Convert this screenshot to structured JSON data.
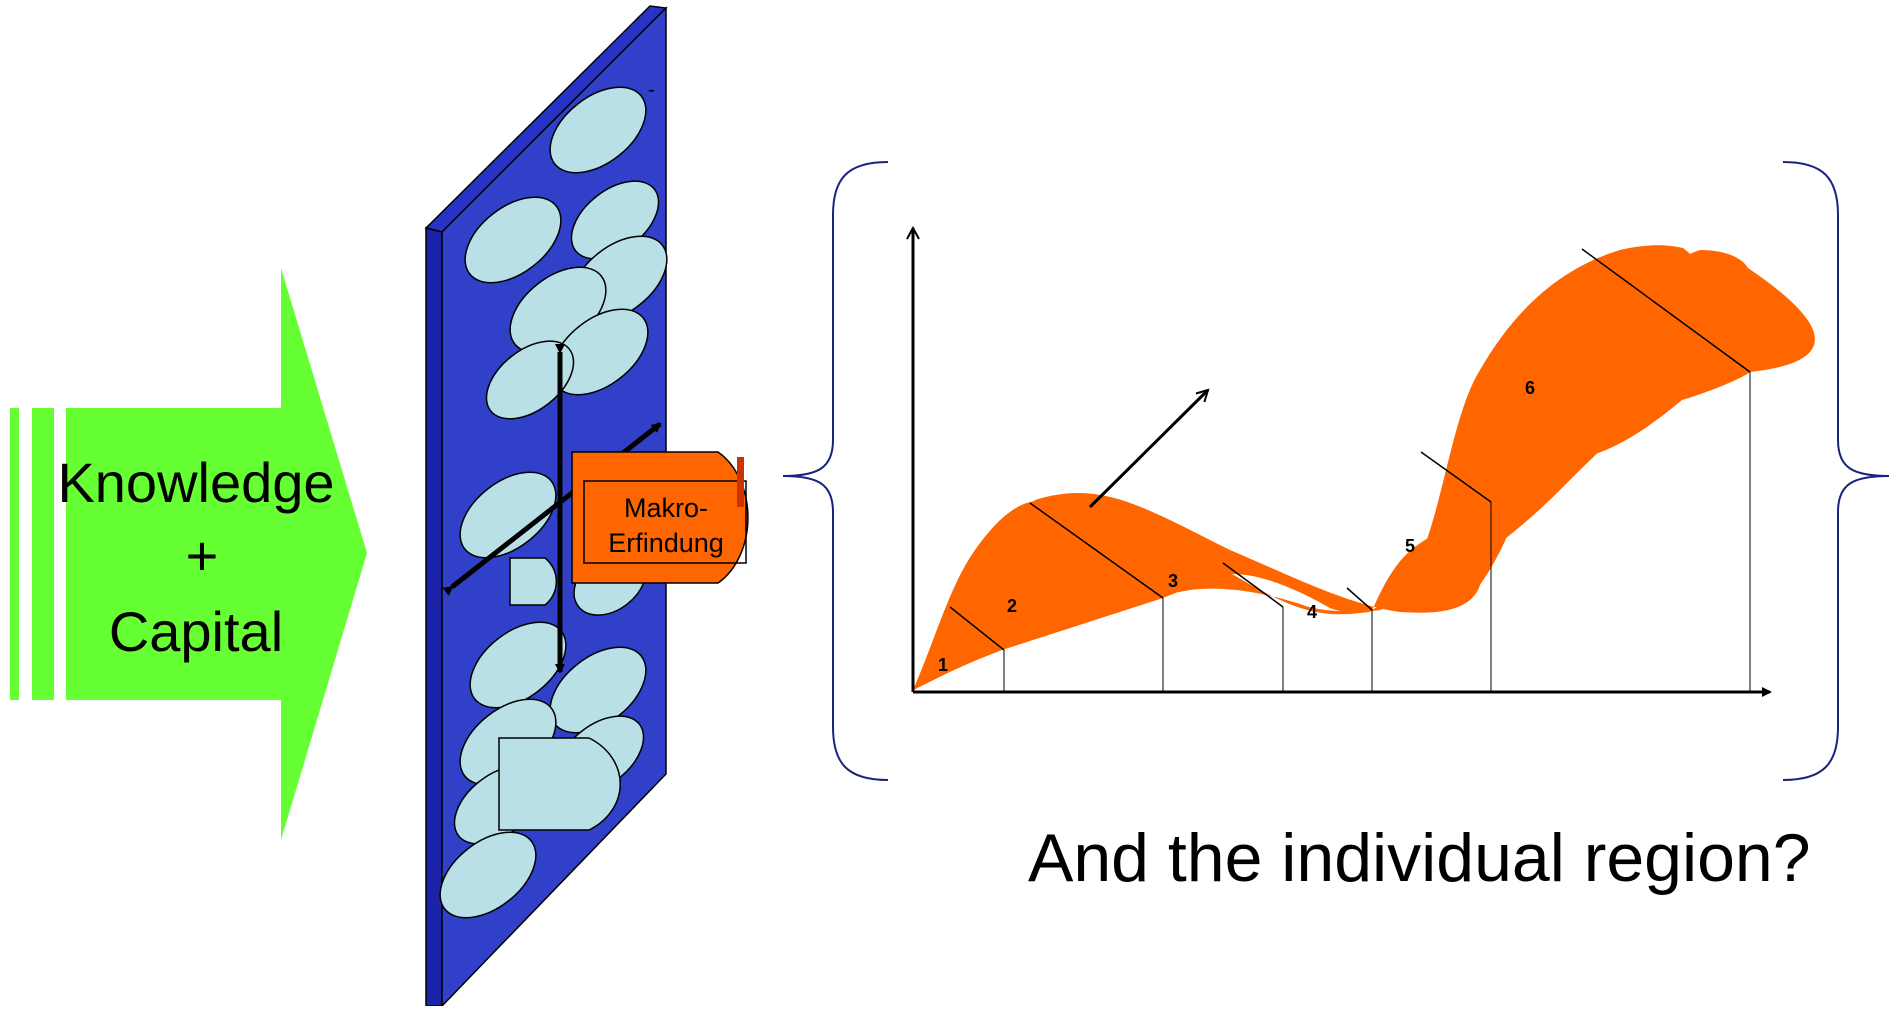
{
  "input_arrow": {
    "line1": "Knowledge",
    "line2": "+",
    "line3": "Capital",
    "color": "#66ff33"
  },
  "panel": {
    "color": "#2f3cc4",
    "dash": "-",
    "ellipse_color": "#b9e0e6",
    "macro_invention": {
      "line1": "Makro-",
      "line2": "Erfindung",
      "color": "#ff6600"
    }
  },
  "curve": {
    "color": "#ff6600",
    "phases": [
      "1",
      "2",
      "3",
      "4",
      "5",
      "6"
    ]
  },
  "question": "And the individual region?"
}
